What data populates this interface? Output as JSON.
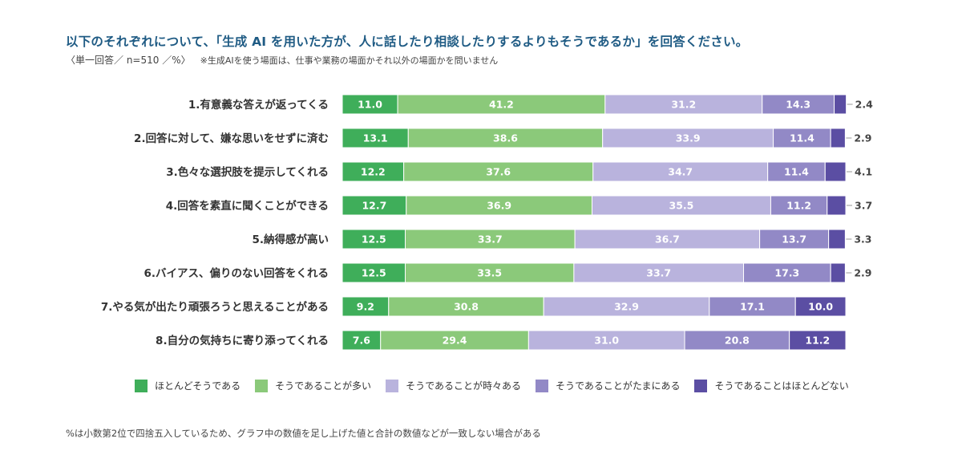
{
  "header": {
    "title": "以下のそれぞれについて、「生成 AI を用いた方が、人に話したり相談したりするよりもそうであるか」を回答ください。",
    "subtitle": "〈単一回答／ n=510 ／%〉",
    "subtitle_note": "※生成AIを使う場面は、仕事や業務の場面かそれ以外の場面かを問いません"
  },
  "footnote": "%は小数第2位で四捨五入しているため、グラフ中の数値を足し上げた値と合計の数値などが一致しない場合がある",
  "chart_data": {
    "type": "bar",
    "orientation": "horizontal",
    "stacked": true,
    "title": "以下のそれぞれについて、「生成 AI を用いた方が、人に話したり相談したりするよりもそうであるか」を回答ください。",
    "xlabel": "",
    "ylabel": "",
    "xlim": [
      0,
      100
    ],
    "unit": "%",
    "legend_position": "bottom",
    "categories": [
      "1.有意義な答えが返ってくる",
      "2.回答に対して、嫌な思いをせずに済む",
      "3.色々な選択肢を提示してくれる",
      "4.回答を素直に聞くことができる",
      "5.納得感が高い",
      "6.バイアス、偏りのない回答をくれる",
      "7.やる気が出たり頑張ろうと思えることがある",
      "8.自分の気持ちに寄り添ってくれる"
    ],
    "series": [
      {
        "name": "ほとんどそうである",
        "color": "#3fae5a",
        "values": [
          11.0,
          13.1,
          12.2,
          12.7,
          12.5,
          12.5,
          9.2,
          7.6
        ]
      },
      {
        "name": "そうであることが多い",
        "color": "#8bc97a",
        "values": [
          41.2,
          38.6,
          37.6,
          36.9,
          33.7,
          33.5,
          30.8,
          29.4
        ]
      },
      {
        "name": "そうであることが時々ある",
        "color": "#b9b3dd",
        "values": [
          31.2,
          33.9,
          34.7,
          35.5,
          36.7,
          33.7,
          32.9,
          31.0
        ]
      },
      {
        "name": "そうであることがたまにある",
        "color": "#9289c6",
        "values": [
          14.3,
          11.4,
          11.4,
          11.2,
          13.7,
          17.3,
          17.1,
          20.8
        ]
      },
      {
        "name": "そうであることはほとんどない",
        "color": "#5b4ea3",
        "values": [
          2.4,
          2.9,
          4.1,
          3.7,
          3.3,
          2.9,
          10.0,
          11.2
        ]
      }
    ]
  }
}
